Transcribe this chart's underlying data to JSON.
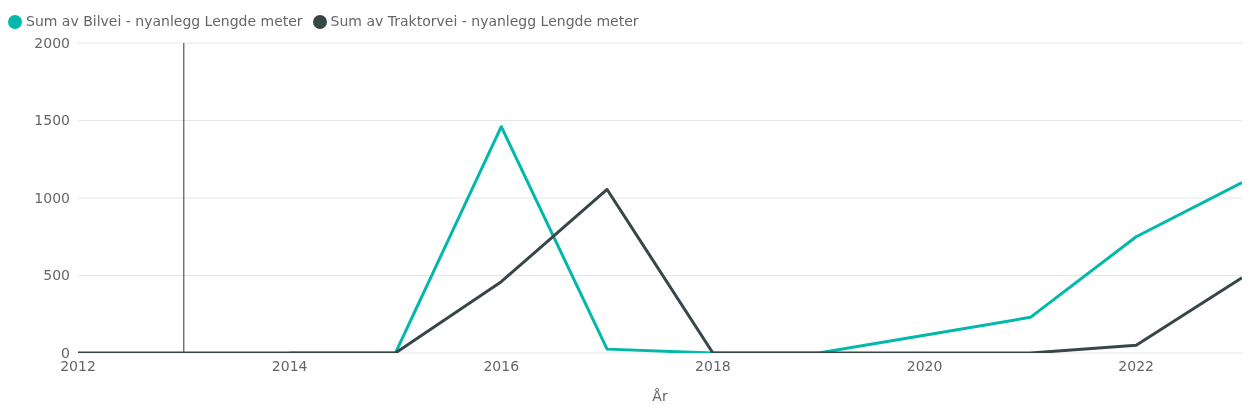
{
  "chart_data": {
    "type": "line",
    "xlabel": "År",
    "x": [
      2012,
      2013,
      2014,
      2015,
      2016,
      2017,
      2018,
      2019,
      2020,
      2021,
      2022,
      2023
    ],
    "series": [
      {
        "name": "Sum av Bilvei - nyanlegg Lengde meter",
        "color": "#01b8aa",
        "values": [
          null,
          null,
          0,
          0,
          1460,
          25,
          0,
          0,
          115,
          230,
          750,
          1100
        ]
      },
      {
        "name": "Sum av Traktorvei - nyanlegg Lengde meter",
        "color": "#374649",
        "values": [
          0,
          0,
          0,
          0,
          460,
          1055,
          0,
          0,
          0,
          0,
          50,
          485
        ]
      }
    ],
    "xlim": [
      2012,
      2023
    ],
    "xticks": [
      2012,
      2014,
      2016,
      2018,
      2020,
      2022
    ],
    "ylim": [
      0,
      2000
    ],
    "yticks": [
      0,
      500,
      1000,
      1500,
      2000
    ],
    "grid": "y",
    "legend": "top left",
    "marker": "none",
    "line_style": "solid",
    "ref_lines": [
      {
        "axis": "x",
        "value": 2013,
        "color": "#333333"
      }
    ]
  }
}
